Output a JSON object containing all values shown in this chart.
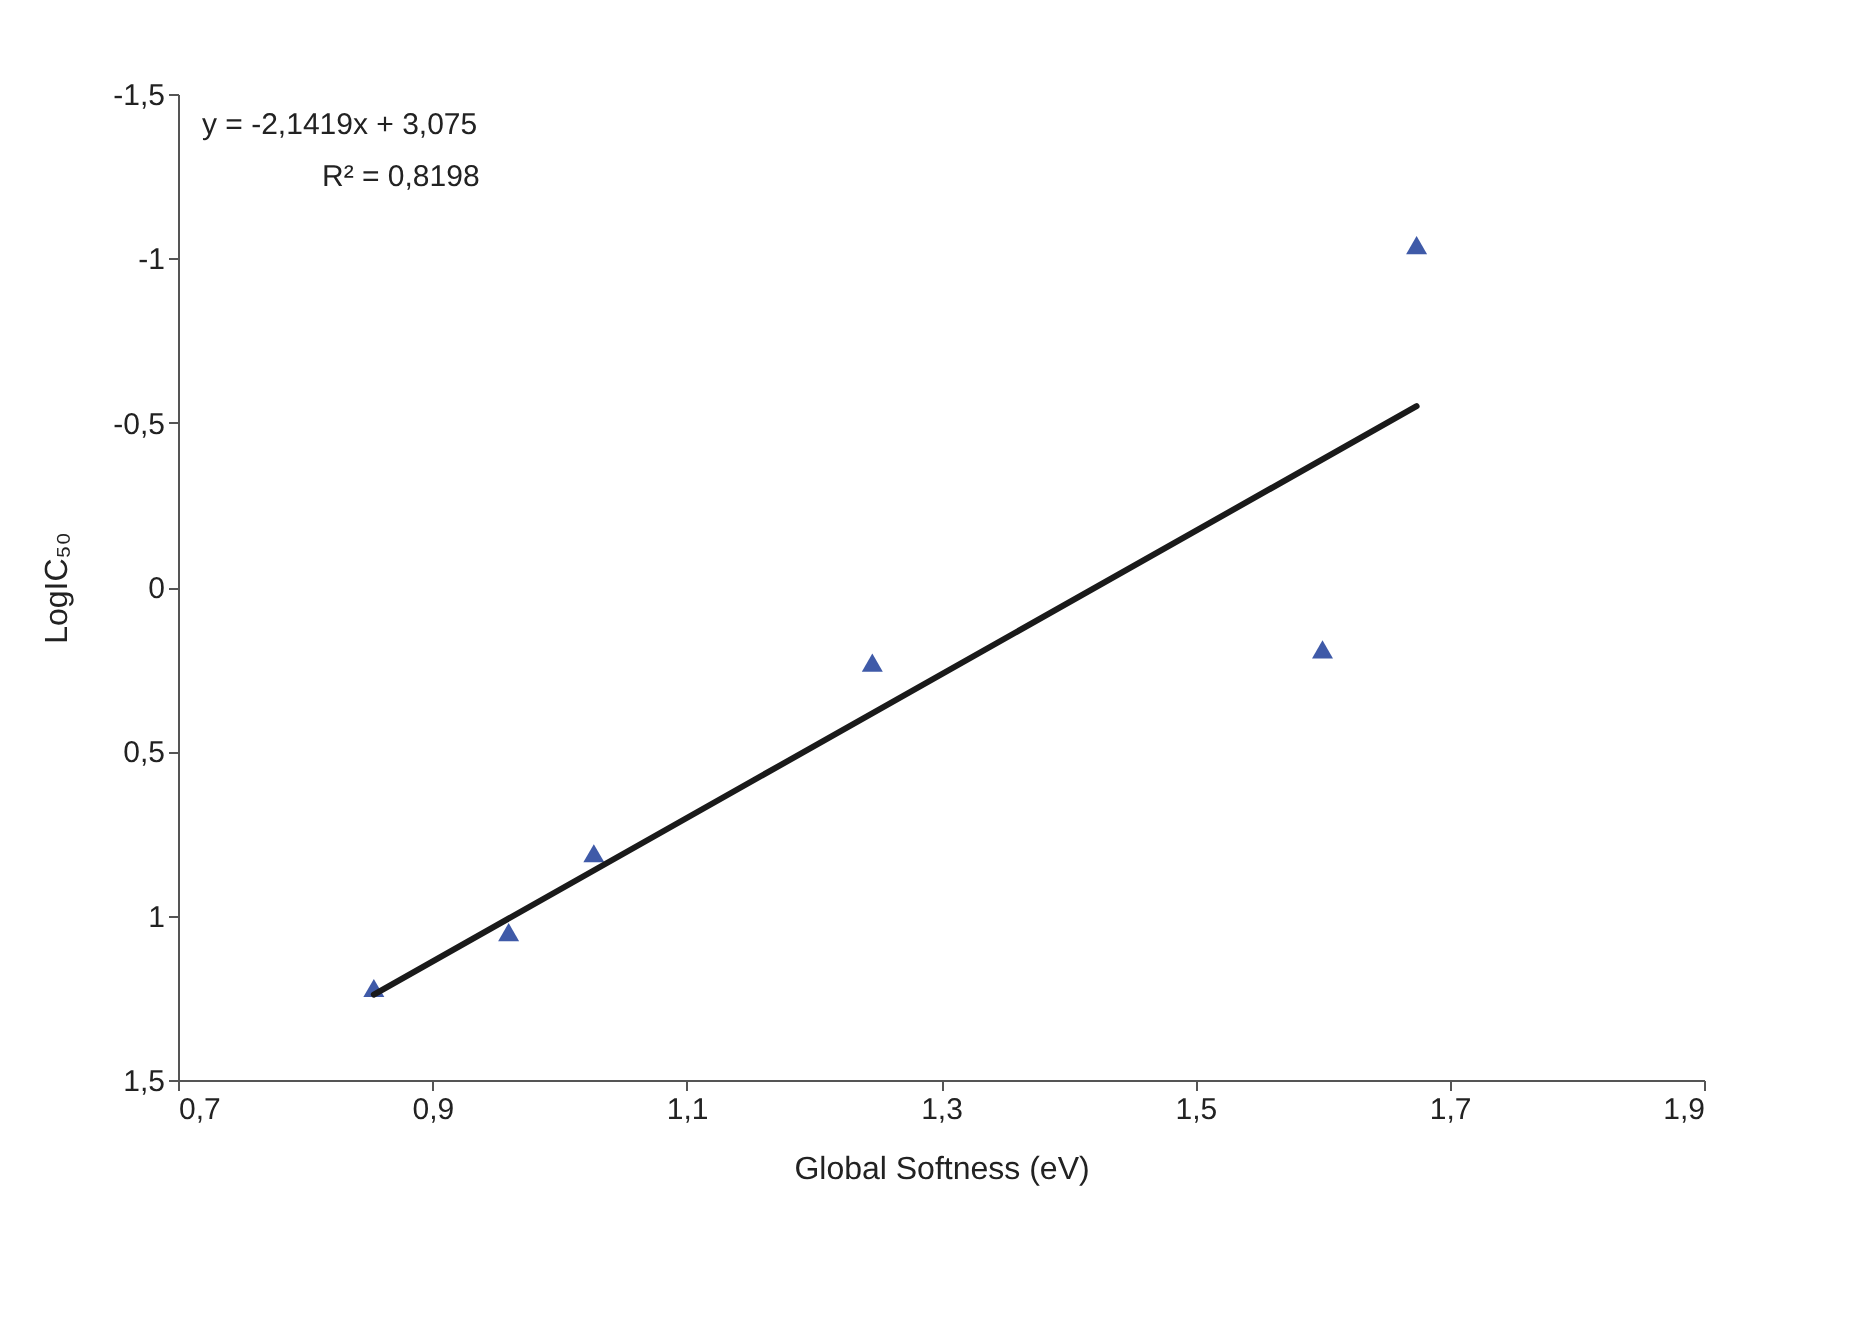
{
  "chart_data": {
    "type": "scatter",
    "xlabel": "Global Softness (eV)",
    "ylabel": "LogIC₅₀",
    "annotations": [
      "y = -2,1419x + 3,075",
      "R² = 0,8198"
    ],
    "xlim": [
      0.7,
      1.9
    ],
    "ylim": [
      1.5,
      -1.5
    ],
    "xticks": [
      {
        "value": 0.7,
        "label": "0,7"
      },
      {
        "value": 0.9,
        "label": "0,9"
      },
      {
        "value": 1.1,
        "label": "1,1"
      },
      {
        "value": 1.3,
        "label": "1,3"
      },
      {
        "value": 1.5,
        "label": "1,5"
      },
      {
        "value": 1.7,
        "label": "1,7"
      },
      {
        "value": 1.9,
        "label": "1,9"
      }
    ],
    "yticks": [
      {
        "value": -1.5,
        "label": "-1,5"
      },
      -1,
      {
        "value": -0.5,
        "label": "-0,5"
      },
      0,
      {
        "value": 0.5,
        "label": "0,5"
      },
      1,
      {
        "value": 1.5,
        "label": "1,5"
      }
    ],
    "grid": false,
    "series": [
      {
        "color": "#3f5aa8",
        "marker": "triangle",
        "x": [
          0.854,
          0.96,
          1.027,
          1.246,
          1.6,
          1.674
        ],
        "values": [
          1.22,
          1.05,
          0.81,
          0.23,
          0.19,
          -1.04
        ]
      },
      {
        "type": "line",
        "color": "#1a1a1a",
        "line_style": "solid",
        "x": [
          0.854,
          1.674
        ],
        "values": [
          1.24,
          -0.55
        ]
      }
    ]
  }
}
